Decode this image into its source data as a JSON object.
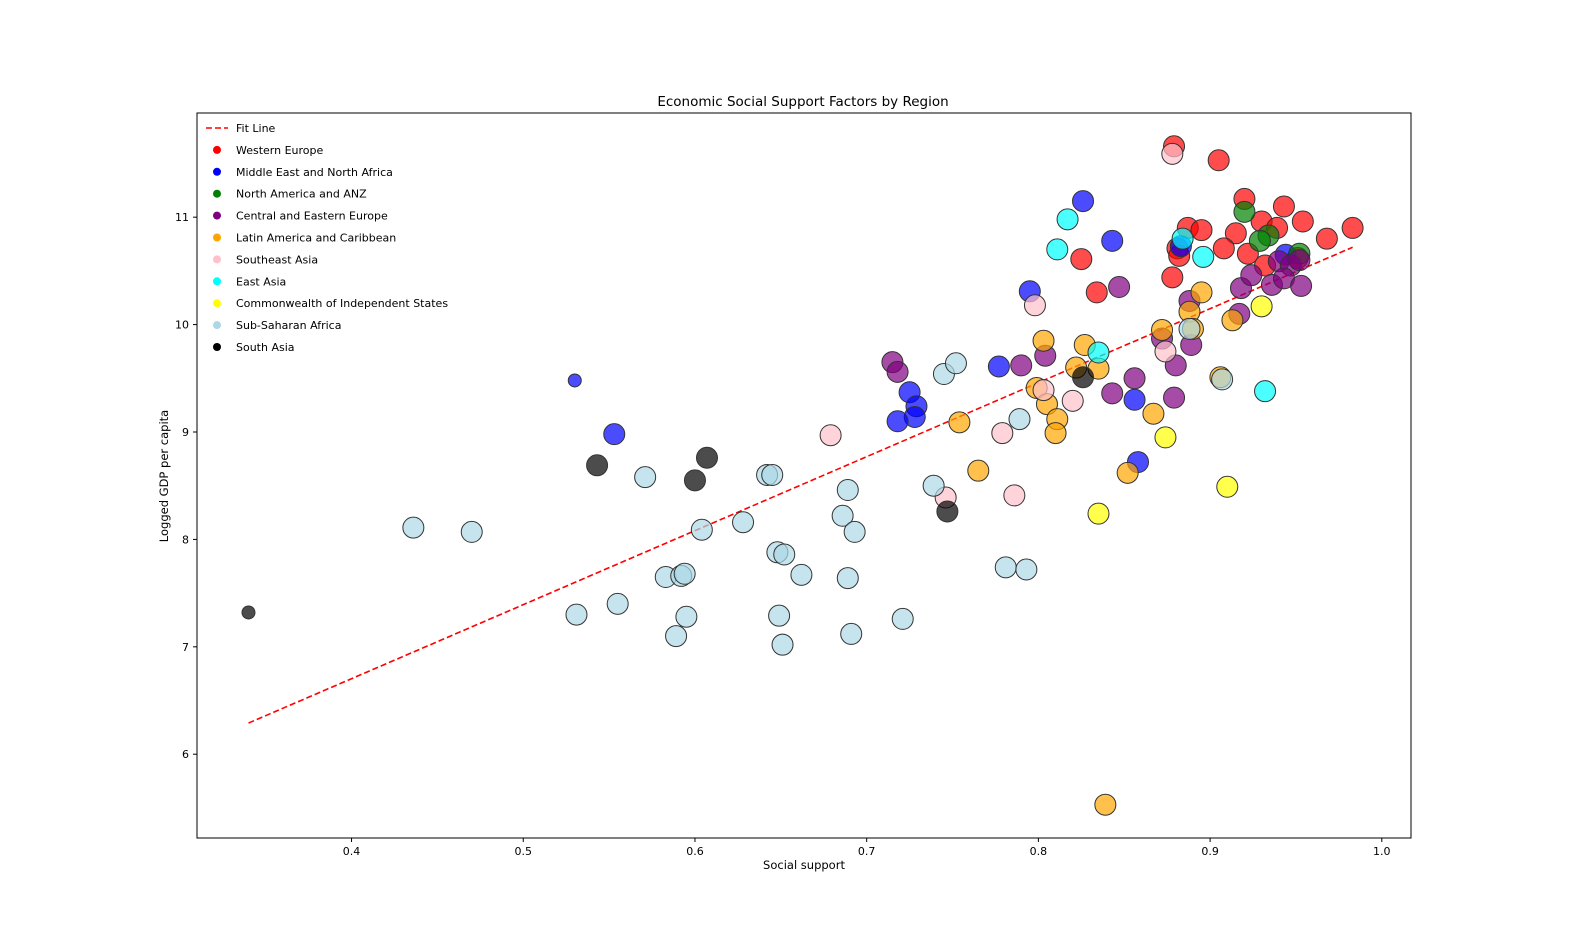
{
  "chart_data": {
    "type": "scatter",
    "title": "Economic Social Support Factors by Region",
    "xlabel": "Social support",
    "ylabel": "Logged GDP per capita",
    "xlim": [
      0.31,
      1.017
    ],
    "ylim": [
      5.22,
      11.97
    ],
    "xticks": [
      "0.4",
      "0.5",
      "0.6",
      "0.7",
      "0.8",
      "0.9",
      "1.0"
    ],
    "yticks": [
      "6",
      "7",
      "8",
      "9",
      "10",
      "11"
    ],
    "grid": false,
    "legend_position": "upper-left",
    "fit_line": {
      "label": "Fit Line",
      "color": "#ff0000",
      "x": [
        0.34,
        0.983
      ],
      "y": [
        6.29,
        10.72
      ]
    },
    "series": [
      {
        "name": "Western Europe",
        "color": "#ff0000",
        "points": [
          [
            0.879,
            11.66
          ],
          [
            0.905,
            11.53
          ],
          [
            0.92,
            11.17
          ],
          [
            0.943,
            11.1
          ],
          [
            0.93,
            10.96
          ],
          [
            0.954,
            10.96
          ],
          [
            0.939,
            10.9
          ],
          [
            0.887,
            10.9
          ],
          [
            0.895,
            10.88
          ],
          [
            0.983,
            10.9
          ],
          [
            0.968,
            10.8
          ],
          [
            0.915,
            10.85
          ],
          [
            0.908,
            10.71
          ],
          [
            0.922,
            10.66
          ],
          [
            0.881,
            10.71
          ],
          [
            0.878,
            10.44
          ],
          [
            0.882,
            10.64
          ],
          [
            0.825,
            10.61
          ],
          [
            0.834,
            10.3
          ],
          [
            0.932,
            10.55
          ],
          [
            0.951,
            10.62
          ]
        ]
      },
      {
        "name": "Middle East and North Africa",
        "color": "#0000ff",
        "points": [
          [
            0.826,
            11.15
          ],
          [
            0.843,
            10.78
          ],
          [
            0.883,
            10.73
          ],
          [
            0.795,
            10.31
          ],
          [
            0.777,
            9.61
          ],
          [
            0.725,
            9.37
          ],
          [
            0.729,
            9.24
          ],
          [
            0.728,
            9.14
          ],
          [
            0.718,
            9.1
          ],
          [
            0.856,
            9.3
          ],
          [
            0.858,
            8.72
          ],
          [
            0.553,
            8.98
          ],
          [
            0.53,
            9.48
          ],
          [
            0.944,
            10.65
          ]
        ]
      },
      {
        "name": "North America and ANZ",
        "color": "#008000",
        "points": [
          [
            0.92,
            11.05
          ],
          [
            0.934,
            10.83
          ],
          [
            0.929,
            10.78
          ],
          [
            0.952,
            10.66
          ]
        ]
      },
      {
        "name": "Central and Eastern Europe",
        "color": "#800080",
        "points": [
          [
            0.847,
            10.35
          ],
          [
            0.888,
            10.22
          ],
          [
            0.918,
            10.34
          ],
          [
            0.924,
            10.46
          ],
          [
            0.94,
            10.59
          ],
          [
            0.947,
            10.55
          ],
          [
            0.952,
            10.6
          ],
          [
            0.936,
            10.37
          ],
          [
            0.943,
            10.43
          ],
          [
            0.953,
            10.36
          ],
          [
            0.917,
            10.1
          ],
          [
            0.872,
            9.87
          ],
          [
            0.889,
            9.81
          ],
          [
            0.88,
            9.62
          ],
          [
            0.79,
            9.62
          ],
          [
            0.804,
            9.71
          ],
          [
            0.715,
            9.65
          ],
          [
            0.718,
            9.56
          ],
          [
            0.856,
            9.5
          ],
          [
            0.843,
            9.36
          ],
          [
            0.879,
            9.32
          ]
        ]
      },
      {
        "name": "Latin America and Caribbean",
        "color": "#ffa500",
        "points": [
          [
            0.895,
            10.3
          ],
          [
            0.888,
            10.12
          ],
          [
            0.872,
            9.95
          ],
          [
            0.89,
            9.96
          ],
          [
            0.913,
            10.04
          ],
          [
            0.803,
            9.85
          ],
          [
            0.827,
            9.81
          ],
          [
            0.822,
            9.6
          ],
          [
            0.835,
            9.59
          ],
          [
            0.906,
            9.51
          ],
          [
            0.799,
            9.41
          ],
          [
            0.805,
            9.26
          ],
          [
            0.811,
            9.12
          ],
          [
            0.81,
            8.99
          ],
          [
            0.867,
            9.17
          ],
          [
            0.754,
            9.09
          ],
          [
            0.765,
            8.64
          ],
          [
            0.852,
            8.62
          ],
          [
            0.839,
            5.53
          ]
        ]
      },
      {
        "name": "Southeast Asia",
        "color": "#ffc0cb",
        "points": [
          [
            0.878,
            11.59
          ],
          [
            0.798,
            10.18
          ],
          [
            0.874,
            9.75
          ],
          [
            0.803,
            9.39
          ],
          [
            0.82,
            9.29
          ],
          [
            0.779,
            8.99
          ],
          [
            0.679,
            8.97
          ],
          [
            0.786,
            8.41
          ],
          [
            0.746,
            8.39
          ]
        ]
      },
      {
        "name": "East Asia",
        "color": "#00ffff",
        "points": [
          [
            0.817,
            10.98
          ],
          [
            0.811,
            10.7
          ],
          [
            0.884,
            10.8
          ],
          [
            0.896,
            10.63
          ],
          [
            0.835,
            9.74
          ],
          [
            0.932,
            9.38
          ]
        ]
      },
      {
        "name": "Commonwealth of Independent States",
        "color": "#ffff00",
        "points": [
          [
            0.93,
            10.17
          ],
          [
            0.874,
            8.95
          ],
          [
            0.835,
            8.24
          ],
          [
            0.91,
            8.49
          ]
        ]
      },
      {
        "name": "Sub-Saharan Africa",
        "color": "#add8e6",
        "points": [
          [
            0.888,
            9.96
          ],
          [
            0.907,
            9.49
          ],
          [
            0.745,
            9.54
          ],
          [
            0.752,
            9.64
          ],
          [
            0.789,
            9.12
          ],
          [
            0.642,
            8.6
          ],
          [
            0.645,
            8.6
          ],
          [
            0.571,
            8.58
          ],
          [
            0.689,
            8.46
          ],
          [
            0.739,
            8.5
          ],
          [
            0.686,
            8.22
          ],
          [
            0.693,
            8.07
          ],
          [
            0.628,
            8.16
          ],
          [
            0.604,
            8.09
          ],
          [
            0.648,
            7.88
          ],
          [
            0.652,
            7.86
          ],
          [
            0.781,
            7.74
          ],
          [
            0.793,
            7.72
          ],
          [
            0.662,
            7.67
          ],
          [
            0.583,
            7.65
          ],
          [
            0.592,
            7.66
          ],
          [
            0.594,
            7.68
          ],
          [
            0.689,
            7.64
          ],
          [
            0.436,
            8.11
          ],
          [
            0.47,
            8.07
          ],
          [
            0.531,
            7.3
          ],
          [
            0.555,
            7.4
          ],
          [
            0.595,
            7.28
          ],
          [
            0.649,
            7.29
          ],
          [
            0.721,
            7.26
          ],
          [
            0.589,
            7.1
          ],
          [
            0.691,
            7.12
          ],
          [
            0.651,
            7.02
          ]
        ]
      },
      {
        "name": "South Asia",
        "color": "#000000",
        "points": [
          [
            0.826,
            9.51
          ],
          [
            0.543,
            8.69
          ],
          [
            0.607,
            8.76
          ],
          [
            0.6,
            8.55
          ],
          [
            0.747,
            8.26
          ],
          [
            0.34,
            7.32
          ]
        ]
      }
    ]
  }
}
